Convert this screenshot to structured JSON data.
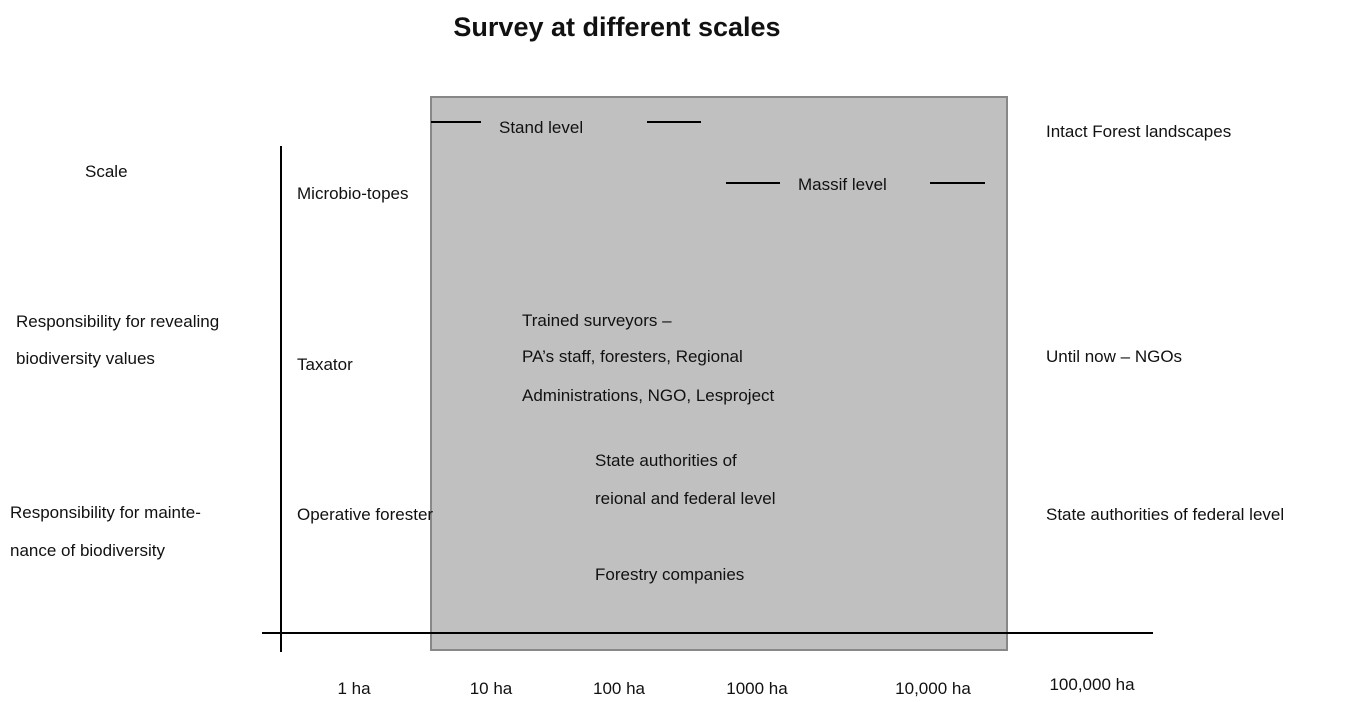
{
  "title": "Survey at different scales",
  "row_labels": [
    "Scale",
    "Responsibility for revealing biodiversity values",
    "Responsibility for maintenance of biodiversity"
  ],
  "row_label_lines": [
    [
      "Scale"
    ],
    [
      "Responsibility for revealing",
      "biodiversity values"
    ],
    [
      "Responsibility for mainte-",
      "nance of biodiversity"
    ]
  ],
  "levels": [
    "Stand level",
    "Massif level",
    "Intact Forest landscapes"
  ],
  "cells": {
    "microbiotopes": "Microbio-topes",
    "taxator": "Taxator",
    "operative": "Operative forester",
    "trained": [
      "Trained surveyors –",
      "PA’s staff, foresters, Regional",
      "Administrations, NGO, Lesproject"
    ],
    "state_regional": [
      "State authorities of",
      "reional and federal level"
    ],
    "forestry": "Forestry companies",
    "ngos": "Until now – NGOs",
    "state_federal": "State authorities of federal level"
  },
  "x_labels": [
    "1 ha",
    "10 ha",
    "100 ha",
    "1000 ha",
    "10,000 ha",
    "100,000 ha"
  ]
}
